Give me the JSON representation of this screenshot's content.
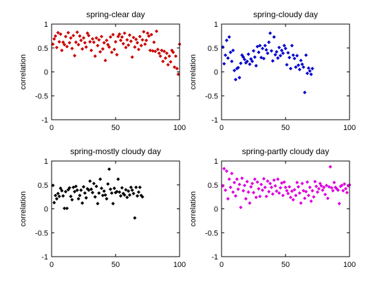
{
  "chart_data": [
    {
      "type": "scatter",
      "title": "spring-clear day",
      "xlabel": "",
      "ylabel": "correlation",
      "xlim": [
        0,
        100
      ],
      "ylim": [
        -1,
        1
      ],
      "xticks": [
        "0",
        "50",
        "100"
      ],
      "yticks": [
        "1",
        "0.5",
        "0",
        "-0.5",
        "-1"
      ],
      "grid": false,
      "marker_color": "#cc0000",
      "points": [
        [
          1,
          0.58
        ],
        [
          2,
          0.69
        ],
        [
          3,
          0.75
        ],
        [
          4,
          0.51
        ],
        [
          5,
          0.82
        ],
        [
          6,
          0.63
        ],
        [
          7,
          0.79
        ],
        [
          8,
          0.45
        ],
        [
          9,
          0.62
        ],
        [
          10,
          0.57
        ],
        [
          11,
          0.74
        ],
        [
          12,
          0.53
        ],
        [
          13,
          0.82
        ],
        [
          14,
          0.61
        ],
        [
          15,
          0.71
        ],
        [
          16,
          0.49
        ],
        [
          17,
          0.76
        ],
        [
          18,
          0.34
        ],
        [
          19,
          0.62
        ],
        [
          20,
          0.83
        ],
        [
          21,
          0.57
        ],
        [
          22,
          0.75
        ],
        [
          23,
          0.66
        ],
        [
          24,
          0.48
        ],
        [
          25,
          0.71
        ],
        [
          26,
          0.61
        ],
        [
          27,
          0.52
        ],
        [
          28,
          0.81
        ],
        [
          29,
          0.76
        ],
        [
          30,
          0.63
        ],
        [
          31,
          0.45
        ],
        [
          32,
          0.69
        ],
        [
          33,
          0.62
        ],
        [
          34,
          0.33
        ],
        [
          35,
          0.71
        ],
        [
          36,
          0.55
        ],
        [
          37,
          0.67
        ],
        [
          38,
          0.42
        ],
        [
          39,
          0.74
        ],
        [
          40,
          0.48
        ],
        [
          41,
          0.61
        ],
        [
          42,
          0.24
        ],
        [
          43,
          0.66
        ],
        [
          44,
          0.57
        ],
        [
          45,
          0.52
        ],
        [
          46,
          0.73
        ],
        [
          47,
          0.41
        ],
        [
          48,
          0.78
        ],
        [
          49,
          0.47
        ],
        [
          50,
          0.63
        ],
        [
          51,
          0.36
        ],
        [
          52,
          0.74
        ],
        [
          53,
          0.79
        ],
        [
          54,
          0.66
        ],
        [
          55,
          0.73
        ],
        [
          56,
          0.59
        ],
        [
          57,
          0.81
        ],
        [
          58,
          0.51
        ],
        [
          59,
          0.67
        ],
        [
          60,
          0.56
        ],
        [
          61,
          0.77
        ],
        [
          62,
          0.64
        ],
        [
          63,
          0.31
        ],
        [
          64,
          0.72
        ],
        [
          65,
          0.52
        ],
        [
          66,
          0.68
        ],
        [
          67,
          0.61
        ],
        [
          68,
          0.47
        ],
        [
          69,
          0.74
        ],
        [
          70,
          0.55
        ],
        [
          71,
          0.67
        ],
        [
          72,
          0.84
        ],
        [
          73,
          0.58
        ],
        [
          74,
          0.66
        ],
        [
          75,
          0.81
        ],
        [
          76,
          0.75
        ],
        [
          77,
          0.45
        ],
        [
          78,
          0.78
        ],
        [
          79,
          0.44
        ],
        [
          80,
          0.62
        ],
        [
          81,
          0.43
        ],
        [
          82,
          0.85
        ],
        [
          83,
          0.47
        ],
        [
          84,
          0.39
        ],
        [
          85,
          0.33
        ],
        [
          86,
          0.45
        ],
        [
          87,
          0.22
        ],
        [
          88,
          0.43
        ],
        [
          89,
          0.29
        ],
        [
          90,
          0.39
        ],
        [
          91,
          0.15
        ],
        [
          92,
          0.33
        ],
        [
          93,
          0.21
        ],
        [
          94,
          0.45
        ],
        [
          95,
          0.41
        ],
        [
          96,
          0.1
        ],
        [
          97,
          0.33
        ],
        [
          98,
          0.07
        ],
        [
          99,
          -0.05
        ],
        [
          100,
          0.58
        ]
      ]
    },
    {
      "type": "scatter",
      "title": "spring-cloudy day",
      "xlabel": "",
      "ylabel": "correlation",
      "xlim": [
        0,
        100
      ],
      "ylim": [
        -1,
        1
      ],
      "xticks": [
        "0",
        "50",
        "100"
      ],
      "yticks": [
        "1",
        "0.5",
        "0",
        "-0.5",
        "-1"
      ],
      "grid": false,
      "marker_color": "#0000cc",
      "points": [
        [
          1,
          0.52
        ],
        [
          2,
          0.17
        ],
        [
          3,
          0.35
        ],
        [
          4,
          0.66
        ],
        [
          5,
          0.29
        ],
        [
          6,
          0.73
        ],
        [
          7,
          0.41
        ],
        [
          8,
          0.22
        ],
        [
          9,
          0.45
        ],
        [
          10,
          0.03
        ],
        [
          11,
          -0.16
        ],
        [
          12,
          0.07
        ],
        [
          13,
          0.09
        ],
        [
          14,
          -0.12
        ],
        [
          15,
          0.18
        ],
        [
          16,
          0.35
        ],
        [
          17,
          0.31
        ],
        [
          18,
          0.26
        ],
        [
          19,
          0.19
        ],
        [
          20,
          0.22
        ],
        [
          21,
          0.37
        ],
        [
          22,
          0.16
        ],
        [
          23,
          0.27
        ],
        [
          24,
          0.22
        ],
        [
          25,
          0.44
        ],
        [
          26,
          0.31
        ],
        [
          27,
          0.13
        ],
        [
          28,
          0.53
        ],
        [
          29,
          0.41
        ],
        [
          30,
          0.55
        ],
        [
          31,
          0.3
        ],
        [
          32,
          0.49
        ],
        [
          33,
          0.28
        ],
        [
          34,
          0.55
        ],
        [
          35,
          0.46
        ],
        [
          36,
          0.39
        ],
        [
          37,
          0.62
        ],
        [
          38,
          0.81
        ],
        [
          39,
          0.44
        ],
        [
          40,
          0.23
        ],
        [
          41,
          0.73
        ],
        [
          42,
          0.36
        ],
        [
          43,
          0.42
        ],
        [
          44,
          0.29
        ],
        [
          45,
          0.51
        ],
        [
          46,
          0.34
        ],
        [
          47,
          0.45
        ],
        [
          48,
          0.39
        ],
        [
          49,
          0.55
        ],
        [
          50,
          0.49
        ],
        [
          51,
          0.15
        ],
        [
          52,
          0.4
        ],
        [
          53,
          0.3
        ],
        [
          54,
          0.07
        ],
        [
          55,
          0.55
        ],
        [
          56,
          0.35
        ],
        [
          57,
          0.28
        ],
        [
          58,
          0.1
        ],
        [
          59,
          0.34
        ],
        [
          60,
          0.14
        ],
        [
          61,
          0.05
        ],
        [
          62,
          0.24
        ],
        [
          63,
          0.16
        ],
        [
          64,
          0.1
        ],
        [
          65,
          -0.43
        ],
        [
          66,
          0.35
        ],
        [
          67,
          -0.03
        ],
        [
          68,
          0.08
        ],
        [
          69,
          0.02
        ],
        [
          70,
          -0.05
        ],
        [
          71,
          0.07
        ]
      ]
    },
    {
      "type": "scatter",
      "title": "spring-mostly cloudy day",
      "xlabel": "",
      "ylabel": "correlation",
      "xlim": [
        0,
        100
      ],
      "ylim": [
        -1,
        1
      ],
      "xticks": [
        "0",
        "50",
        "100"
      ],
      "yticks": [
        "1",
        "0.5",
        "0",
        "-0.5",
        "-1"
      ],
      "grid": false,
      "marker_color": "#000000",
      "points": [
        [
          1,
          0.49
        ],
        [
          2,
          0.13
        ],
        [
          3,
          0.28
        ],
        [
          4,
          0.21
        ],
        [
          5,
          0.32
        ],
        [
          6,
          0.26
        ],
        [
          7,
          0.43
        ],
        [
          8,
          0.38
        ],
        [
          9,
          0.27
        ],
        [
          10,
          0.01
        ],
        [
          11,
          0.36
        ],
        [
          12,
          0.01
        ],
        [
          13,
          0.4
        ],
        [
          14,
          0.44
        ],
        [
          15,
          0.26
        ],
        [
          16,
          0.19
        ],
        [
          17,
          0.45
        ],
        [
          18,
          0.36
        ],
        [
          19,
          0.47
        ],
        [
          20,
          0.39
        ],
        [
          21,
          0.21
        ],
        [
          22,
          0.28
        ],
        [
          23,
          0.39
        ],
        [
          24,
          0.12
        ],
        [
          25,
          0.46
        ],
        [
          26,
          0.33
        ],
        [
          27,
          0.23
        ],
        [
          28,
          0.42
        ],
        [
          29,
          0.39
        ],
        [
          30,
          0.58
        ],
        [
          31,
          0.41
        ],
        [
          32,
          0.34
        ],
        [
          33,
          0.53
        ],
        [
          34,
          0.25
        ],
        [
          35,
          0.47
        ],
        [
          36,
          0.11
        ],
        [
          37,
          0.33
        ],
        [
          38,
          0.62
        ],
        [
          39,
          0.43
        ],
        [
          40,
          0.28
        ],
        [
          41,
          0.37
        ],
        [
          42,
          0.29
        ],
        [
          43,
          0.21
        ],
        [
          44,
          0.52
        ],
        [
          45,
          0.83
        ],
        [
          46,
          0.41
        ],
        [
          47,
          0.33
        ],
        [
          48,
          0.11
        ],
        [
          49,
          0.43
        ],
        [
          50,
          0.34
        ],
        [
          51,
          0.36
        ],
        [
          52,
          0.62
        ],
        [
          53,
          0.35
        ],
        [
          54,
          0.27
        ],
        [
          55,
          0.44
        ],
        [
          56,
          0.32
        ],
        [
          57,
          0.29
        ],
        [
          58,
          0.4
        ],
        [
          59,
          0.24
        ],
        [
          60,
          0.37
        ],
        [
          61,
          0.29
        ],
        [
          62,
          0.45
        ],
        [
          63,
          0.39
        ],
        [
          64,
          0.32
        ],
        [
          65,
          -0.19
        ],
        [
          66,
          0.45
        ],
        [
          67,
          0.27
        ],
        [
          68,
          0.35
        ],
        [
          69,
          0.45
        ],
        [
          70,
          0.28
        ],
        [
          71,
          0.25
        ]
      ]
    },
    {
      "type": "scatter",
      "title": "spring-partly cloudy day",
      "xlabel": "",
      "ylabel": "correlation",
      "xlim": [
        0,
        100
      ],
      "ylim": [
        -1,
        1
      ],
      "xticks": [
        "0",
        "50",
        "100"
      ],
      "yticks": [
        "1",
        "0.5",
        "0",
        "-0.5",
        "-1"
      ],
      "grid": false,
      "marker_color": "#dd00dd",
      "points": [
        [
          1,
          0.48
        ],
        [
          2,
          0.84
        ],
        [
          3,
          0.39
        ],
        [
          4,
          0.79
        ],
        [
          5,
          0.21
        ],
        [
          6,
          0.62
        ],
        [
          7,
          0.45
        ],
        [
          8,
          0.74
        ],
        [
          9,
          0.35
        ],
        [
          10,
          0.55
        ],
        [
          11,
          0.27
        ],
        [
          12,
          0.62
        ],
        [
          13,
          0.41
        ],
        [
          14,
          0.51
        ],
        [
          15,
          0.03
        ],
        [
          16,
          0.64
        ],
        [
          17,
          0.38
        ],
        [
          18,
          0.49
        ],
        [
          19,
          0.21
        ],
        [
          20,
          0.57
        ],
        [
          21,
          0.35
        ],
        [
          22,
          0.12
        ],
        [
          23,
          0.46
        ],
        [
          24,
          0.53
        ],
        [
          25,
          0.34
        ],
        [
          26,
          0.62
        ],
        [
          27,
          0.24
        ],
        [
          28,
          0.56
        ],
        [
          29,
          0.42
        ],
        [
          30,
          0.26
        ],
        [
          31,
          0.51
        ],
        [
          32,
          0.39
        ],
        [
          33,
          0.63
        ],
        [
          34,
          0.45
        ],
        [
          35,
          0.26
        ],
        [
          36,
          0.58
        ],
        [
          37,
          0.36
        ],
        [
          38,
          0.53
        ],
        [
          39,
          0.45
        ],
        [
          40,
          0.31
        ],
        [
          41,
          0.6
        ],
        [
          42,
          0.48
        ],
        [
          43,
          0.37
        ],
        [
          44,
          0.62
        ],
        [
          45,
          0.33
        ],
        [
          46,
          0.44
        ],
        [
          47,
          0.54
        ],
        [
          48,
          0.28
        ],
        [
          49,
          0.56
        ],
        [
          50,
          0.45
        ],
        [
          51,
          0.38
        ],
        [
          52,
          0.32
        ],
        [
          53,
          0.46
        ],
        [
          54,
          0.24
        ],
        [
          55,
          0.37
        ],
        [
          56,
          0.19
        ],
        [
          57,
          0.4
        ],
        [
          58,
          0.28
        ],
        [
          59,
          0.55
        ],
        [
          60,
          0.46
        ],
        [
          61,
          0.33
        ],
        [
          62,
          0.12
        ],
        [
          63,
          0.53
        ],
        [
          64,
          0.38
        ],
        [
          65,
          0.22
        ],
        [
          66,
          0.36
        ],
        [
          67,
          0.56
        ],
        [
          68,
          0.28
        ],
        [
          69,
          0.45
        ],
        [
          70,
          0.16
        ],
        [
          71,
          0.38
        ],
        [
          72,
          0.25
        ],
        [
          73,
          0.57
        ],
        [
          74,
          0.47
        ],
        [
          75,
          0.35
        ],
        [
          76,
          0.42
        ],
        [
          77,
          0.53
        ],
        [
          78,
          0.48
        ],
        [
          79,
          0.39
        ],
        [
          80,
          0.45
        ],
        [
          81,
          0.3
        ],
        [
          82,
          0.49
        ],
        [
          83,
          0.22
        ],
        [
          84,
          0.46
        ],
        [
          85,
          0.88
        ],
        [
          86,
          0.44
        ],
        [
          87,
          0.38
        ],
        [
          88,
          0.55
        ],
        [
          89,
          0.45
        ],
        [
          90,
          0.42
        ],
        [
          91,
          0.39
        ],
        [
          92,
          0.11
        ],
        [
          93,
          0.47
        ],
        [
          94,
          0.49
        ],
        [
          95,
          0.38
        ],
        [
          96,
          0.52
        ],
        [
          97,
          0.42
        ],
        [
          98,
          0.34
        ],
        [
          99,
          0.48
        ],
        [
          100,
          0.5
        ]
      ]
    }
  ]
}
